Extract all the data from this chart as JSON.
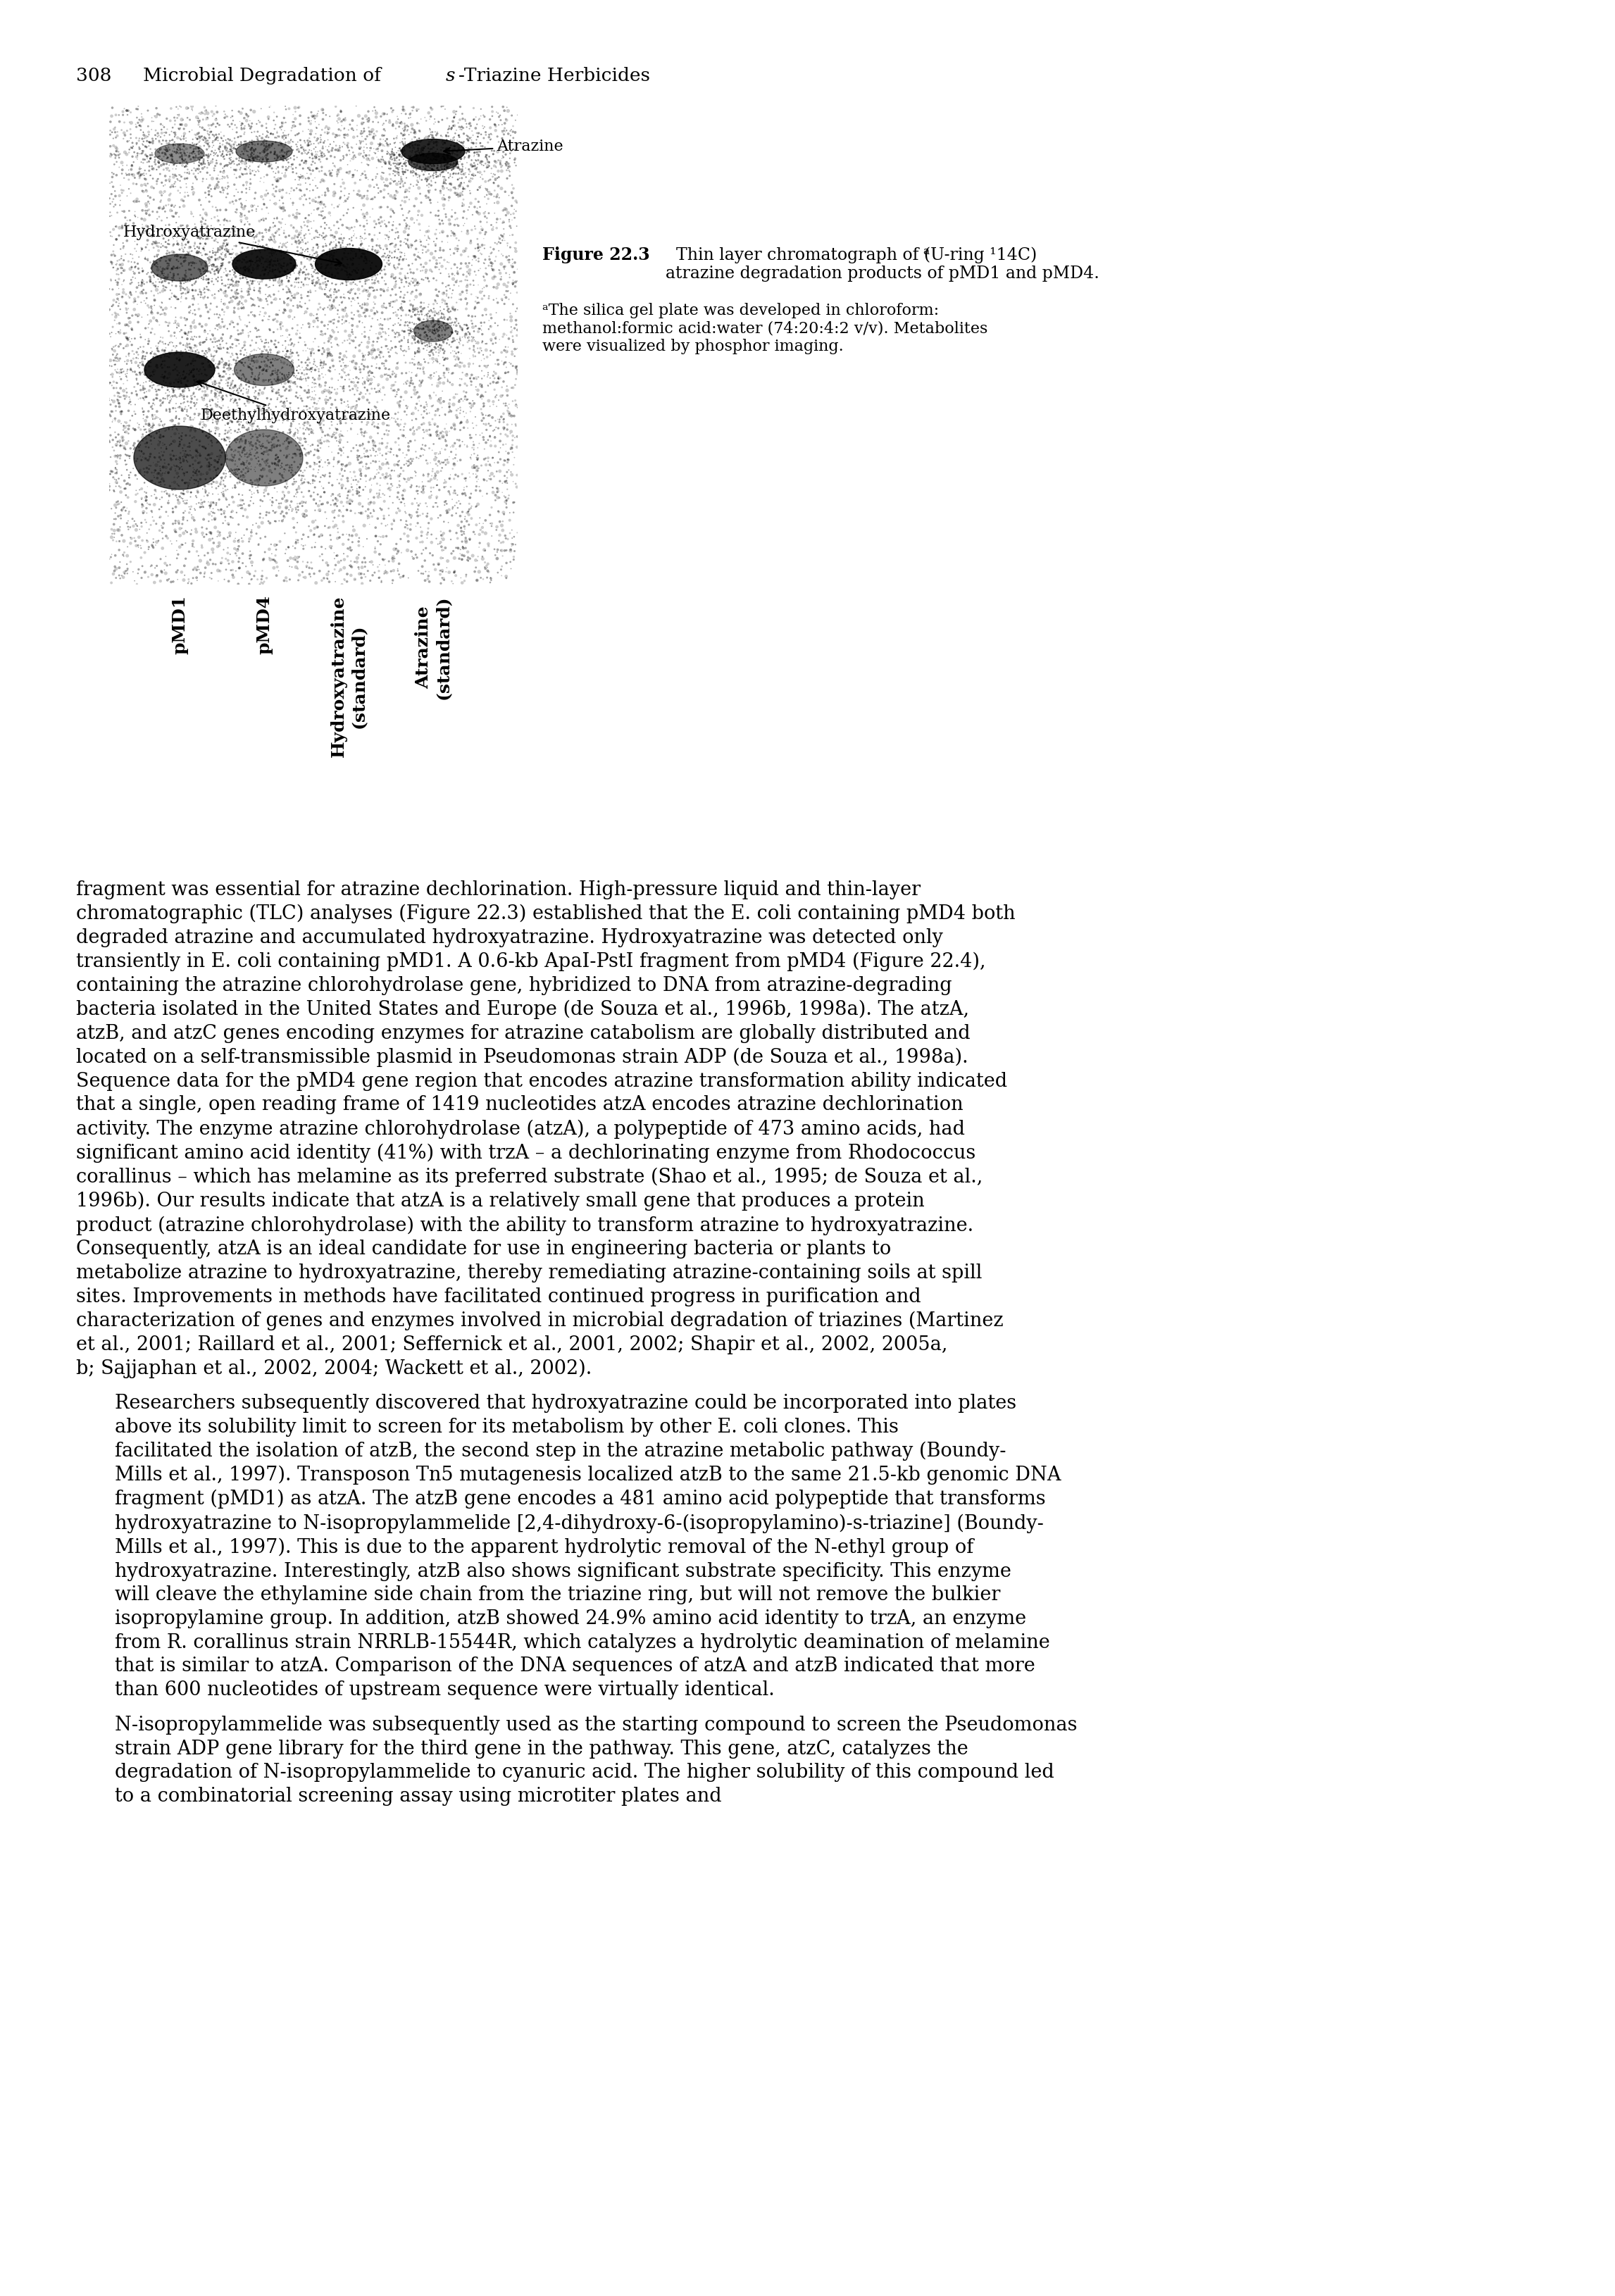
{
  "page_header_number": "308",
  "page_header_title": "Microbial Degradation of ",
  "page_header_italic": "s",
  "page_header_rest": "-Triazine Herbicides",
  "figure_number": "Figure 22.3",
  "figure_caption_bold": "Figure 22.3",
  "figure_caption_main": "  Thin layer chromatograph of (U-ring ¹⁴C) atrazine degradation products of pMD1 and pMD4.",
  "figure_caption_superscript": "a",
  "figure_caption_footnote": "ᵃThe silica gel plate was developed in chloroform: methanol:formic acid:water (74:20:4:2 v/v). Metabolites were visualized by phosphor imaging.",
  "lane_labels": [
    "pMD1",
    "pMD4",
    "Hydroxyatrazine\n(standard)",
    "Atrazine\n(standard)"
  ],
  "image_label_atrazine": "Atrazine",
  "image_label_hydroxyatrazine": "Hydroxyatrazine",
  "image_label_deethylhydroxyatrazine": "Deethylhydroxyatrazine",
  "body_text": "fragment was essential for atrazine dechlorination. High-pressure liquid and thin-layer chromatographic (TLC) analyses (Figure 22.3) established that the E. coli containing pMD4 both degraded atrazine and accumulated hydroxyatrazine. Hydroxyatrazine was detected only transiently in E. coli containing pMD1. A 0.6-kb ApaI-PstI fragment from pMD4 (Figure 22.4), containing the atrazine chlorohydrolase gene, hybridized to DNA from atrazine-degrading bacteria isolated in the United States and Europe (de Souza et al., 1996b, 1998a). The atzA, atzB, and atzC genes encoding enzymes for atrazine catabolism are globally distributed and located on a self-transmissible plasmid in Pseudomonas strain ADP (de Souza et al., 1998a). Sequence data for the pMD4 gene region that encodes atrazine transformation ability indicated that a single, open reading frame of 1419 nucleotides atzA encodes atrazine dechlorination activity. The enzyme atrazine chlorohydrolase (atzA), a polypeptide of 473 amino acids, had significant amino acid identity (41%) with trzA – a dechlorinating enzyme from Rhodococcus corallinus – which has melamine as its preferred substrate (Shao et al., 1995; de Souza et al., 1996b). Our results indicate that atzA is a relatively small gene that produces a protein product (atrazine chlorohydrolase) with the ability to transform atrazine to hydroxyatrazine. Consequently, atzA is an ideal candidate for use in engineering bacteria or plants to metabolize atrazine to hydroxyatrazine, thereby remediating atrazine-containing soils at spill sites. Improvements in methods have facilitated continued progress in purification and characterization of genes and enzymes involved in microbial degradation of triazines (Martinez et al., 2001; Raillard et al., 2001; Seffernick et al., 2001, 2002; Shapir et al., 2002, 2005a, b; Sajjaphan et al., 2002, 2004; Wackett et al., 2002).",
  "body_text2": "Researchers subsequently discovered that hydroxyatrazine could be incorporated into plates above its solubility limit to screen for its metabolism by other E. coli clones. This facilitated the isolation of atzB, the second step in the atrazine metabolic pathway (Boundy-Mills et al., 1997). Transposon Tn5 mutagenesis localized atzB to the same 21.5-kb genomic DNA fragment (pMD1) as atzA. The atzB gene encodes a 481 amino acid polypeptide that transforms hydroxyatrazine to N-isopropylammelide [2,4-dihydroxy-6-(isopropylamino)-s-triazine] (Boundy-Mills et al., 1997). This is due to the apparent hydrolytic removal of the N-ethyl group of hydroxyatrazine. Interestingly, atzB also shows significant substrate specificity. This enzyme will cleave the ethylamine side chain from the triazine ring, but will not remove the bulkier isopropylamine group. In addition, atzB showed 24.9% amino acid identity to trzA, an enzyme from R. corallinus strain NRRLB-15544R, which catalyzes a hydrolytic deamination of melamine that is similar to atzA. Comparison of the DNA sequences of atzA and atzB indicated that more than 600 nucleotides of upstream sequence were virtually identical.",
  "body_text3": "N-isopropylammelide was subsequently used as the starting compound to screen the Pseudomonas strain ADP gene library for the third gene in the pathway. This gene, atzC, catalyzes the degradation of N-isopropylammelide to cyanuric acid. The higher solubility of this compound led to a combinatorial screening assay using microtiter plates and",
  "bg_color": "#ffffff",
  "text_color": "#000000"
}
